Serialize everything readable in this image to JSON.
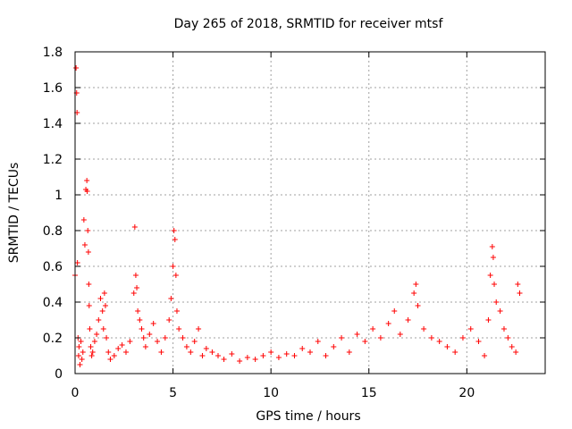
{
  "chart_data": {
    "type": "scatter",
    "title": "Day 265 of 2018, SRMTID for receiver mtsf",
    "xlabel": "GPS time / hours",
    "ylabel": "SRMTID / TECUs",
    "xlim": [
      0,
      24
    ],
    "ylim": [
      0,
      1.8
    ],
    "x_ticks": [
      0,
      5,
      10,
      15,
      20
    ],
    "x_tick_labels": [
      "0",
      "5",
      "10",
      "15",
      "20"
    ],
    "y_ticks": [
      0,
      0.2,
      0.4,
      0.6,
      0.8,
      1,
      1.2,
      1.4,
      1.6,
      1.8
    ],
    "y_tick_labels": [
      "0",
      "0.2",
      "0.4",
      "0.6",
      "0.8",
      "1",
      "1.2",
      "1.4",
      "1.6",
      "1.8"
    ],
    "grid": true,
    "marker": "+",
    "series": [
      {
        "name": "SRMTID",
        "color": "#ff0000",
        "x": [
          0.0,
          0.05,
          0.08,
          0.1,
          0.12,
          0.15,
          0.18,
          0.2,
          0.25,
          0.3,
          0.35,
          0.4,
          0.45,
          0.5,
          0.55,
          0.6,
          0.62,
          0.65,
          0.68,
          0.7,
          0.72,
          0.75,
          0.8,
          0.85,
          0.9,
          1.0,
          1.1,
          1.2,
          1.3,
          1.4,
          1.45,
          1.5,
          1.55,
          1.6,
          1.7,
          1.8,
          2.0,
          2.2,
          2.4,
          2.6,
          2.8,
          3.0,
          3.05,
          3.1,
          3.15,
          3.2,
          3.3,
          3.4,
          3.5,
          3.6,
          3.8,
          4.0,
          4.2,
          4.4,
          4.6,
          4.8,
          4.9,
          5.0,
          5.05,
          5.1,
          5.15,
          5.2,
          5.3,
          5.5,
          5.7,
          5.9,
          6.1,
          6.3,
          6.5,
          6.7,
          7.0,
          7.3,
          7.6,
          8.0,
          8.4,
          8.8,
          9.2,
          9.6,
          10.0,
          10.4,
          10.8,
          11.2,
          11.6,
          12.0,
          12.4,
          12.8,
          13.2,
          13.6,
          14.0,
          14.4,
          14.8,
          15.2,
          15.6,
          16.0,
          16.3,
          16.6,
          17.0,
          17.3,
          17.4,
          17.5,
          17.8,
          18.2,
          18.6,
          19.0,
          19.4,
          19.8,
          20.2,
          20.6,
          20.9,
          21.1,
          21.2,
          21.3,
          21.35,
          21.4,
          21.5,
          21.7,
          21.9,
          22.1,
          22.3,
          22.5,
          22.6,
          22.7
        ],
        "values": [
          0.55,
          1.71,
          1.57,
          1.46,
          0.62,
          0.2,
          0.1,
          0.15,
          0.05,
          0.18,
          0.08,
          0.12,
          0.86,
          0.72,
          1.03,
          1.08,
          1.02,
          0.8,
          0.68,
          0.5,
          0.38,
          0.25,
          0.15,
          0.1,
          0.12,
          0.18,
          0.22,
          0.3,
          0.42,
          0.35,
          0.25,
          0.45,
          0.38,
          0.2,
          0.12,
          0.08,
          0.1,
          0.14,
          0.16,
          0.12,
          0.18,
          0.45,
          0.82,
          0.55,
          0.48,
          0.35,
          0.3,
          0.25,
          0.2,
          0.15,
          0.22,
          0.28,
          0.18,
          0.12,
          0.2,
          0.3,
          0.42,
          0.6,
          0.8,
          0.75,
          0.55,
          0.35,
          0.25,
          0.2,
          0.15,
          0.12,
          0.18,
          0.25,
          0.1,
          0.14,
          0.12,
          0.1,
          0.08,
          0.11,
          0.07,
          0.09,
          0.08,
          0.1,
          0.12,
          0.09,
          0.11,
          0.1,
          0.14,
          0.12,
          0.18,
          0.1,
          0.15,
          0.2,
          0.12,
          0.22,
          0.18,
          0.25,
          0.2,
          0.28,
          0.35,
          0.22,
          0.3,
          0.45,
          0.5,
          0.38,
          0.25,
          0.2,
          0.18,
          0.15,
          0.12,
          0.2,
          0.25,
          0.18,
          0.1,
          0.3,
          0.55,
          0.71,
          0.65,
          0.5,
          0.4,
          0.35,
          0.25,
          0.2,
          0.15,
          0.12,
          0.5,
          0.45
        ]
      }
    ]
  }
}
